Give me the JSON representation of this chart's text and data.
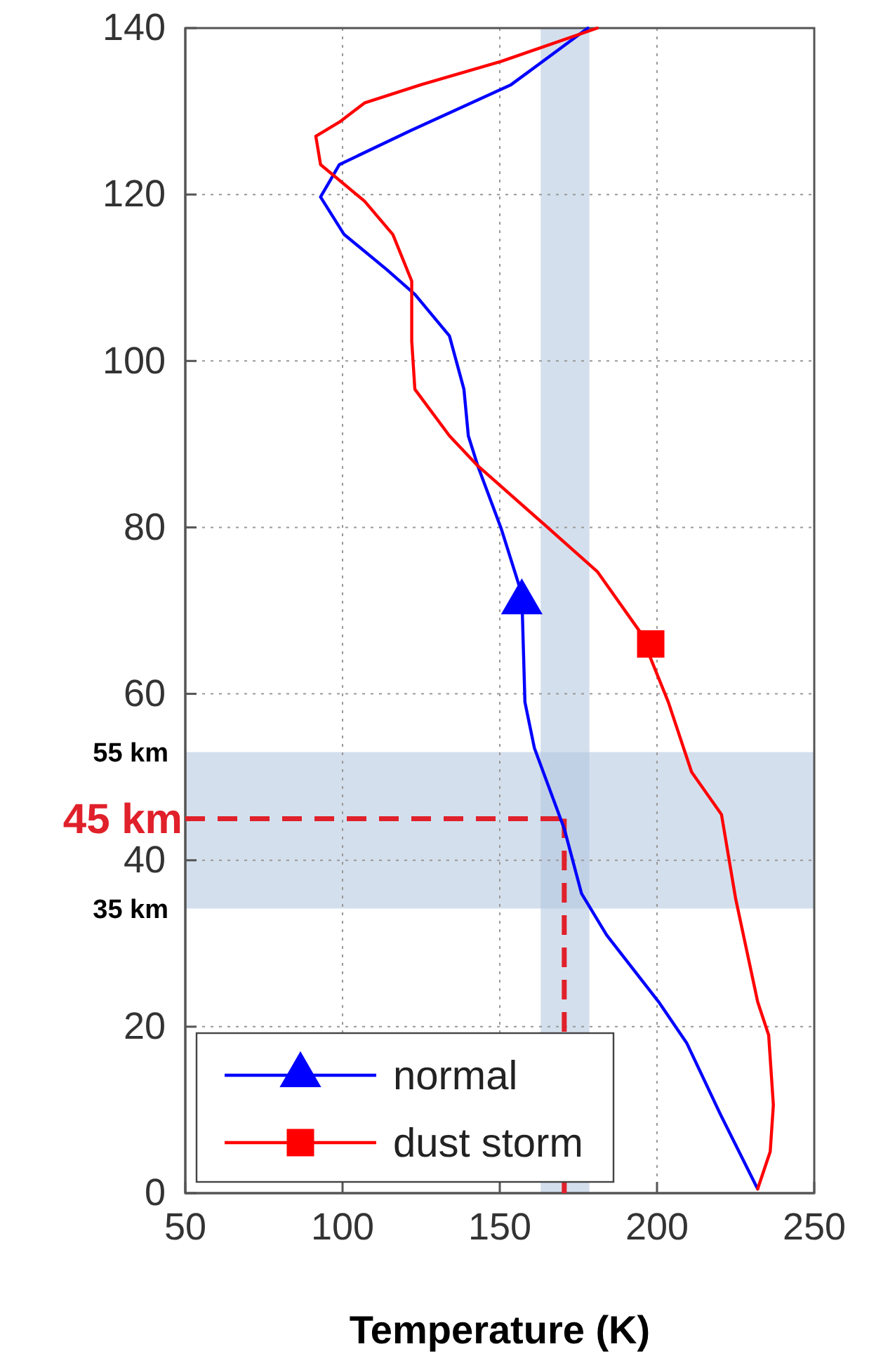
{
  "chart_data": {
    "type": "line",
    "xlabel": "Temperature (K)",
    "xlim": [
      50,
      250
    ],
    "xticks": [
      50,
      100,
      150,
      200,
      250
    ],
    "ylim": [
      0,
      140
    ],
    "yticks": [
      0,
      20,
      40,
      60,
      80,
      100,
      120,
      140
    ],
    "grid": true,
    "legend": "bottom left",
    "line_style": "solid",
    "series": [
      {
        "name": "normal",
        "color": "#0000ff",
        "x": [
          232,
          220,
          209.5,
          200.5,
          184,
          176,
          170.5,
          161,
          158,
          157,
          150.5,
          143,
          140,
          138.6,
          134,
          123,
          114,
          100.5,
          93,
          99,
          121.8,
          153.6,
          178
        ],
        "values": [
          0.5,
          9.6,
          18,
          23,
          31,
          36,
          43.8,
          53.5,
          59,
          72,
          79.8,
          87.4,
          91,
          96.6,
          103,
          108,
          111,
          115.2,
          119.7,
          123.6,
          127.7,
          133.2,
          140
        ]
      },
      {
        "type": "scatter",
        "color": "#0000ff",
        "marker": "triangle",
        "x": [
          157
        ],
        "values": [
          71
        ]
      },
      {
        "name": "dust storm",
        "color": "#ff0000",
        "x": [
          232,
          236,
          237,
          235.5,
          232,
          225,
          220.5,
          211,
          203.6,
          194.5,
          181,
          164,
          143,
          134,
          123,
          122,
          122,
          116,
          107,
          93,
          91.5,
          99,
          107,
          125,
          150.5,
          181
        ],
        "values": [
          0.5,
          5,
          10.6,
          19,
          23,
          35.4,
          45.5,
          50.6,
          59,
          67.5,
          74.7,
          80.4,
          87.4,
          91,
          96.6,
          102.4,
          109.6,
          115.2,
          119.2,
          123.6,
          127,
          128.7,
          131,
          133.2,
          136,
          140
        ]
      },
      {
        "type": "scatter",
        "color": "#ff0000",
        "marker": "square",
        "x": [
          198
        ],
        "values": [
          66
        ]
      }
    ],
    "bands": [
      {
        "axis": "y",
        "from": 34.2,
        "to": 53,
        "color": "#b0c4de"
      },
      {
        "axis": "x",
        "from": 163,
        "to": 178.5,
        "color": "#b0c4de"
      }
    ],
    "ref_lines": [
      {
        "axis": "y",
        "value": 45,
        "label": "45 km",
        "color": "#e0202a",
        "line_style": "dashed"
      },
      {
        "axis": "x",
        "value": 170.5,
        "color": "#e0202a",
        "line_style": "dashed"
      }
    ],
    "annotations": [
      "55 km",
      "35 km"
    ]
  }
}
